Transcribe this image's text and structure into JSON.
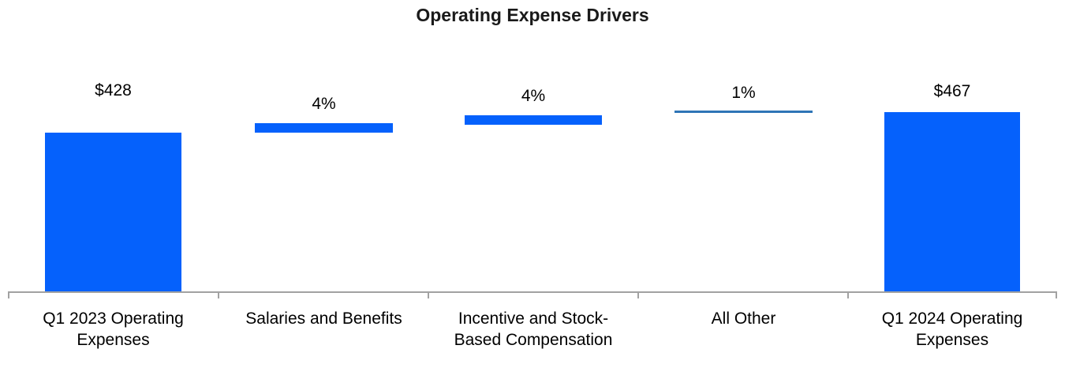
{
  "chart_data": {
    "type": "bar",
    "subtype": "waterfall",
    "title": "Operating Expense Drivers",
    "categories": [
      "Q1 2023 Operating Expenses",
      "Salaries and Benefits",
      "Incentive and Stock-Based Compensation",
      "All Other",
      "Q1 2024 Operating Expenses"
    ],
    "segments": [
      {
        "category": "Q1 2023 Operating Expenses",
        "kind": "total",
        "label": "$428",
        "value": 428,
        "start": 0,
        "end": 428
      },
      {
        "category": "Salaries and Benefits",
        "kind": "increase",
        "label": "4%",
        "pct_change": 4,
        "start": 428,
        "end": 445
      },
      {
        "category": "Incentive and Stock-Based Compensation",
        "kind": "increase",
        "label": "4%",
        "pct_change": 4,
        "start": 445,
        "end": 462
      },
      {
        "category": "All Other",
        "kind": "increase",
        "label": "1%",
        "pct_change": 1,
        "start": 462,
        "end": 467
      },
      {
        "category": "Q1 2024 Operating Expenses",
        "kind": "total",
        "label": "$467",
        "value": 467,
        "start": 0,
        "end": 467
      }
    ],
    "axis": {
      "x_axis_visible": true,
      "y_axis_visible": false,
      "grid": false,
      "legend": false
    },
    "colors": {
      "bar": "#0561FC",
      "small_change_bar": "#2E75B6",
      "axis_line": "#A2A2A2",
      "text": "#000000"
    }
  }
}
